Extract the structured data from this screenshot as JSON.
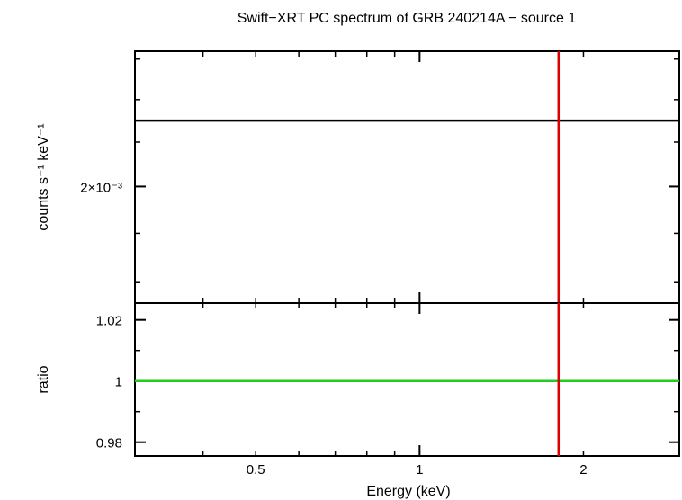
{
  "chart_data": [
    {
      "type": "line",
      "title": "Swift−XRT PC spectrum of GRB 240214A − source 1",
      "xlabel": "",
      "ylabel": "counts s⁻¹ keV⁻¹",
      "x_scale": "log",
      "y_scale": "log",
      "xlim": [
        0.3,
        3.0
      ],
      "ylim": [
        0.00176,
        0.00232
      ],
      "grid": false,
      "y_ticks": [
        {
          "value": 0.002,
          "label": "2×10⁻³"
        }
      ],
      "series": [
        {
          "color": "#000000",
          "x": [
            0.3,
            3.0
          ],
          "y": [
            0.00215,
            0.00215
          ]
        }
      ],
      "vline": {
        "x": 1.8,
        "color": "#dd0000"
      }
    },
    {
      "type": "line",
      "title": "",
      "xlabel": "Energy (keV)",
      "ylabel": "ratio",
      "x_scale": "log",
      "y_scale": "linear",
      "xlim": [
        0.3,
        3.0
      ],
      "ylim": [
        0.9755,
        1.0255
      ],
      "grid": false,
      "x_ticks": [
        {
          "value": 0.5,
          "label": "0.5"
        },
        {
          "value": 1,
          "label": "1"
        },
        {
          "value": 2,
          "label": "2"
        }
      ],
      "y_ticks": [
        {
          "value": 0.98,
          "label": "0.98"
        },
        {
          "value": 1,
          "label": "1"
        },
        {
          "value": 1.02,
          "label": "1.02"
        }
      ],
      "series": [
        {
          "color": "#22cc22",
          "x": [
            0.3,
            3.0
          ],
          "y": [
            1.0,
            1.0
          ]
        }
      ],
      "vline": {
        "x": 1.8,
        "color": "#dd0000"
      }
    }
  ]
}
